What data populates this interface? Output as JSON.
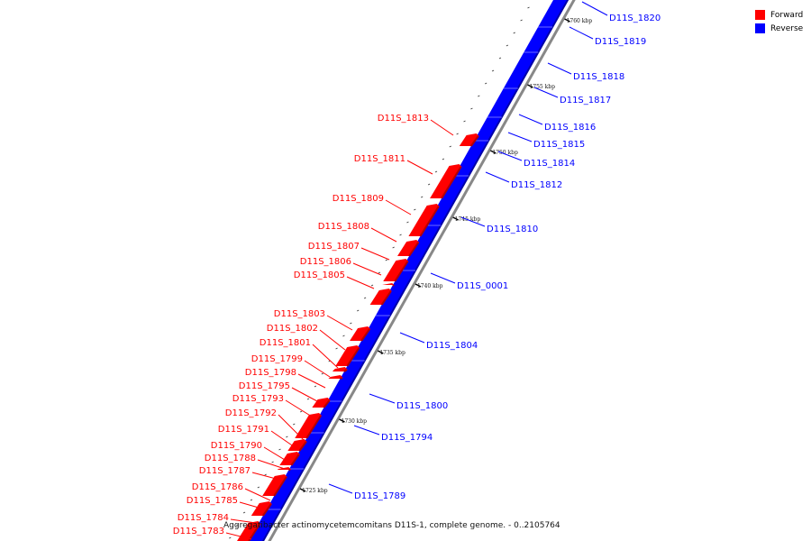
{
  "legend": {
    "items": [
      {
        "label": "Forward",
        "color": "#ff0000"
      },
      {
        "label": "Reverse",
        "color": "#0000ff"
      }
    ]
  },
  "caption": "Aggregatibacter actinomycetemcomitans D11S-1, complete genome. - 0..2105764",
  "colors": {
    "forward": "#ff0000",
    "forward_dark": "#b40000",
    "reverse": "#0000ff",
    "reverse_dark": "#0000a8",
    "backbone": "#888888"
  },
  "scale_ticks": [
    {
      "label": "1760 kbp",
      "position_kbp": 1760
    },
    {
      "label": "1755 kbp",
      "position_kbp": 1755
    },
    {
      "label": "1750 kbp",
      "position_kbp": 1750
    },
    {
      "label": "1745 kbp",
      "position_kbp": 1745
    },
    {
      "label": "1740 kbp",
      "position_kbp": 1740
    },
    {
      "label": "1735 kbp",
      "position_kbp": 1735
    },
    {
      "label": "1730 kbp",
      "position_kbp": 1730
    },
    {
      "label": "1725 kbp",
      "position_kbp": 1725
    }
  ],
  "forward_genes": [
    {
      "label": "D11S_1813"
    },
    {
      "label": "D11S_1811"
    },
    {
      "label": "D11S_1809"
    },
    {
      "label": "D11S_1808"
    },
    {
      "label": "D11S_1807"
    },
    {
      "label": "D11S_1806"
    },
    {
      "label": "D11S_1805"
    },
    {
      "label": "D11S_1803"
    },
    {
      "label": "D11S_1802"
    },
    {
      "label": "D11S_1801"
    },
    {
      "label": "D11S_1799"
    },
    {
      "label": "D11S_1798"
    },
    {
      "label": "D11S_1795"
    },
    {
      "label": "D11S_1793"
    },
    {
      "label": "D11S_1792"
    },
    {
      "label": "D11S_1791"
    },
    {
      "label": "D11S_1790"
    },
    {
      "label": "D11S_1788"
    },
    {
      "label": "D11S_1787"
    },
    {
      "label": "D11S_1786"
    },
    {
      "label": "D11S_1785"
    },
    {
      "label": "D11S_1784"
    },
    {
      "label": "D11S_1783"
    }
  ],
  "reverse_genes": [
    {
      "label": "D11S_1820"
    },
    {
      "label": "D11S_1819"
    },
    {
      "label": "D11S_1818"
    },
    {
      "label": "D11S_1817"
    },
    {
      "label": "D11S_1816"
    },
    {
      "label": "D11S_1815"
    },
    {
      "label": "D11S_1814"
    },
    {
      "label": "D11S_1812"
    },
    {
      "label": "D11S_1810"
    },
    {
      "label": "D11S_0001"
    },
    {
      "label": "D11S_1804"
    },
    {
      "label": "D11S_1800"
    },
    {
      "label": "D11S_1794"
    },
    {
      "label": "D11S_1789"
    }
  ]
}
